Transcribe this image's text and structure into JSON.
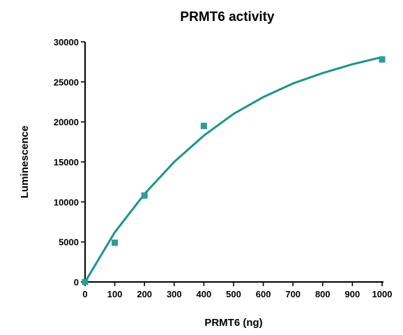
{
  "chart_data": {
    "type": "scatter",
    "title": "PRMT6 activity",
    "xlabel": "PRMT6 (ng)",
    "ylabel": "Luminescence",
    "xlim": [
      0,
      1000
    ],
    "ylim": [
      0,
      30000
    ],
    "xticks": [
      0,
      100,
      200,
      300,
      400,
      500,
      600,
      700,
      800,
      900,
      1000
    ],
    "yticks": [
      0,
      5000,
      10000,
      15000,
      20000,
      25000,
      30000
    ],
    "grid": false,
    "legend": "none",
    "series": [
      {
        "marker": "square",
        "color": "#2a9d95",
        "x": [
          0,
          100,
          200,
          400,
          1000
        ],
        "y": [
          0,
          4900,
          10800,
          19500,
          27800
        ]
      }
    ],
    "fit_curve": {
      "model": "one-phase association",
      "color": "#1a958c",
      "x": [
        0,
        100,
        200,
        300,
        400,
        500,
        600,
        700,
        800,
        900,
        1000
      ],
      "y": [
        0,
        6200,
        11000,
        15000,
        18300,
        21000,
        23100,
        24800,
        26100,
        27200,
        28100
      ]
    }
  }
}
